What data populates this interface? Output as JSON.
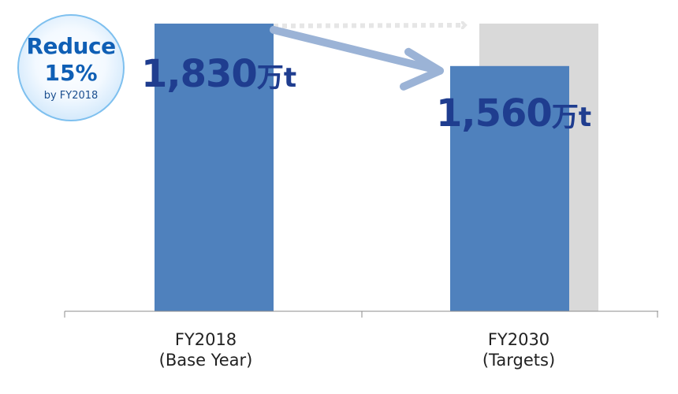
{
  "chart_data": {
    "type": "bar",
    "categories": [
      "FY2018",
      "FY2030"
    ],
    "category_sublabels": [
      "(Base Year)",
      "(Targets)"
    ],
    "series": [
      {
        "values": [
          1830,
          1560
        ],
        "color": "#4f81bd"
      }
    ],
    "reference_values": [
      null,
      1830
    ],
    "reference_color": "#d9d9d9",
    "value_labels": [
      {
        "number": "1,830",
        "unit": "万t"
      },
      {
        "number": "1,560",
        "unit": "万t"
      }
    ],
    "ylim": [
      0,
      1950
    ],
    "grid": false,
    "legend": "none",
    "title": "",
    "xlabel": "",
    "ylabel": ""
  },
  "badge": {
    "line1": "Reduce",
    "line2": "15%",
    "line3": "by FY2018",
    "color": "#0f5fb5"
  },
  "arrows": {
    "reduction_color": "#9bb3d6",
    "dotted_color": "#e6e6e6"
  }
}
